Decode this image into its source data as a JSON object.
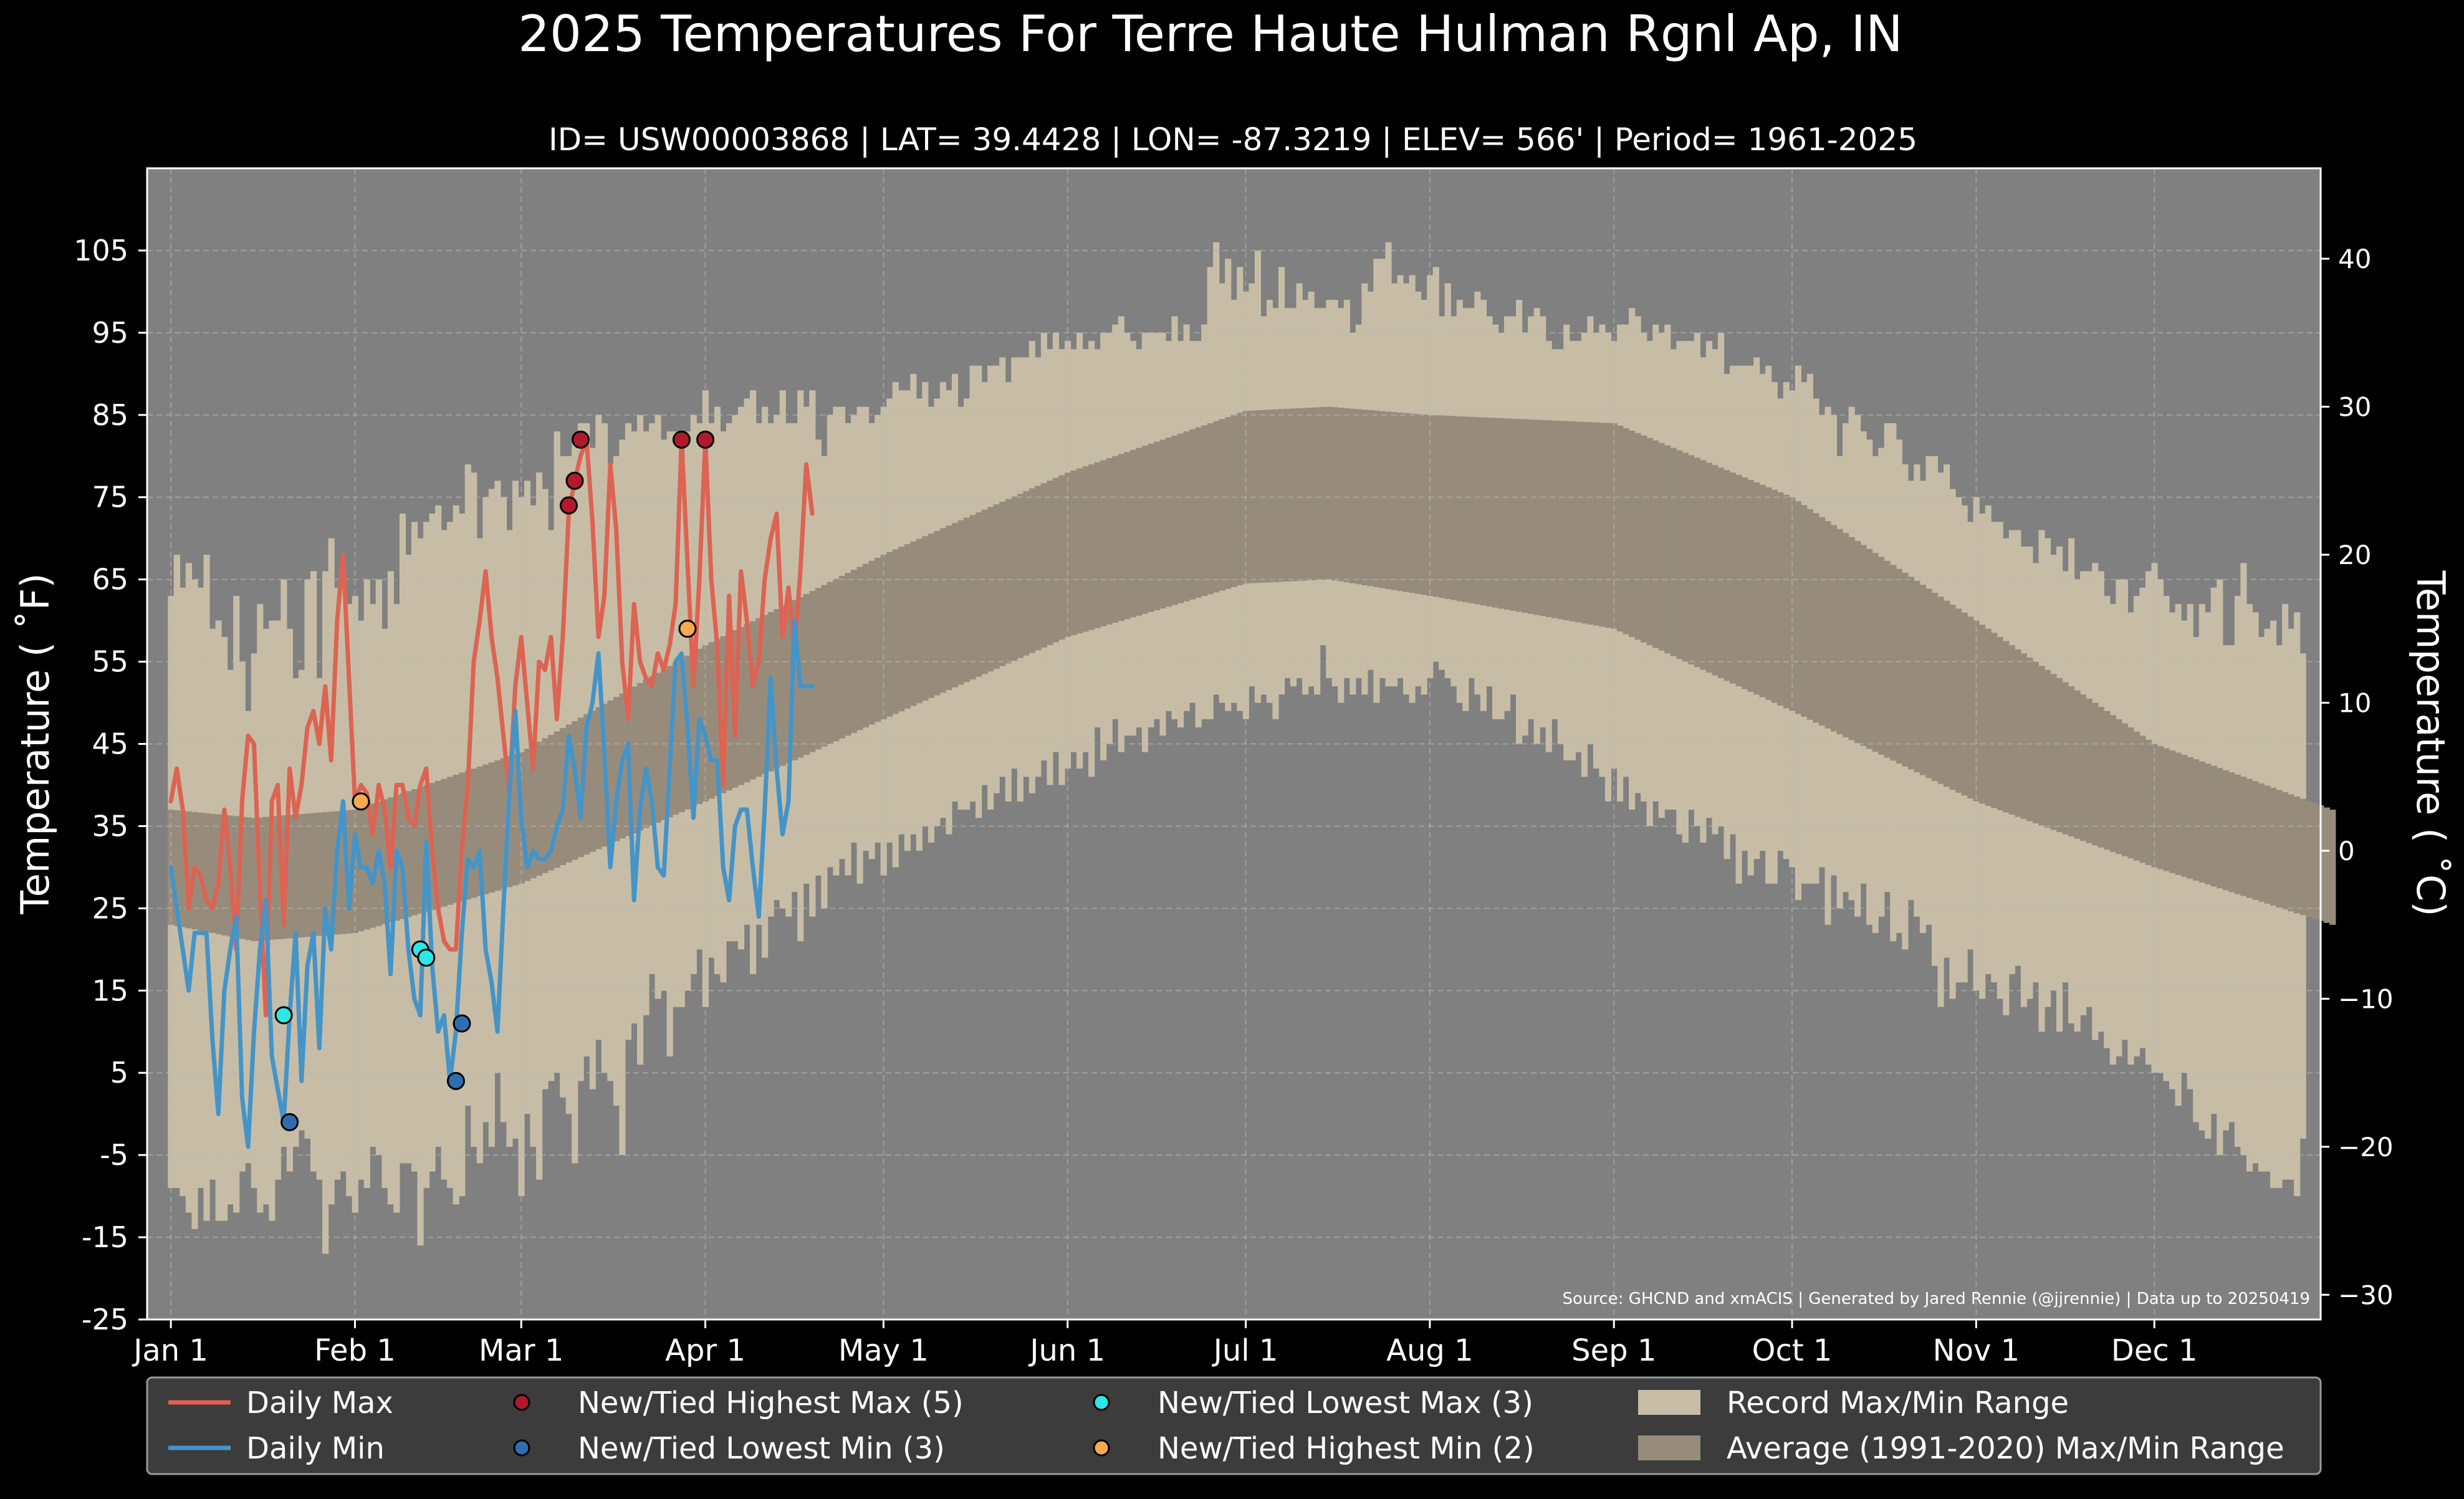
{
  "chart_data": {
    "type": "line",
    "title": "2025 Temperatures For Terre Haute Hulman Rgnl Ap, IN",
    "subtitle": "ID= USW00003868 | LAT= 39.4428 | LON= -87.3219 | ELEV= 566' | Period= 1961-2025",
    "ylabel": "Temperature ( ˚F)",
    "y2label": "Temperature ( ˚C)",
    "source": "Source: GHCND and xmACIS | Generated by Jared Rennie (@jjrennie) | Data up to 20250419",
    "ylim": [
      -25,
      115
    ],
    "y2lim": [
      -31.67,
      46.11
    ],
    "xlim": [
      -3,
      363
    ],
    "yticks": [
      105,
      95,
      85,
      75,
      65,
      55,
      45,
      35,
      25,
      15,
      5,
      -5,
      -15,
      -25
    ],
    "y2ticks": [
      40,
      30,
      20,
      10,
      0,
      -10,
      -20,
      -30
    ],
    "xticks": [
      {
        "label": "Jan 1",
        "day": 1
      },
      {
        "label": "Feb 1",
        "day": 32
      },
      {
        "label": "Mar 1",
        "day": 60
      },
      {
        "label": "Apr 1",
        "day": 91
      },
      {
        "label": "May 1",
        "day": 121
      },
      {
        "label": "Jun 1",
        "day": 152
      },
      {
        "label": "Jul 1",
        "day": 182
      },
      {
        "label": "Aug 1",
        "day": 213
      },
      {
        "label": "Sep 1",
        "day": 244
      },
      {
        "label": "Oct 1",
        "day": 274
      },
      {
        "label": "Nov 1",
        "day": 305
      },
      {
        "label": "Dec 1",
        "day": 335
      }
    ],
    "grid": true,
    "legend_position": "bottom",
    "colors": {
      "background": "#000000",
      "plot_bg": "#808080",
      "record_band": "#c7bda6",
      "normal_band": "#978c7c",
      "daily_max": "#dd6352",
      "daily_min": "#4494c8",
      "grid": "#b8b8b8",
      "text": "#ffffff"
    },
    "series": [
      {
        "name": "Daily Max",
        "color": "#dd6352",
        "x": [
          1,
          2,
          3,
          4,
          5,
          6,
          7,
          8,
          9,
          10,
          11,
          12,
          13,
          14,
          15,
          16,
          17,
          18,
          19,
          20,
          21,
          22,
          23,
          24,
          25,
          26,
          27,
          28,
          29,
          30,
          31,
          32,
          33,
          34,
          35,
          36,
          37,
          38,
          39,
          40,
          41,
          42,
          43,
          44,
          45,
          46,
          47,
          48,
          49,
          50,
          51,
          52,
          53,
          54,
          55,
          56,
          57,
          58,
          59,
          60,
          61,
          62,
          63,
          64,
          65,
          66,
          67,
          68,
          69,
          70,
          71,
          72,
          73,
          74,
          75,
          76,
          77,
          78,
          79,
          80,
          81,
          82,
          83,
          84,
          85,
          86,
          87,
          88,
          89,
          90,
          91,
          92,
          93,
          94,
          95,
          96,
          97,
          98,
          99,
          100,
          101,
          102,
          103,
          104,
          105,
          106,
          107,
          108,
          109
        ],
        "values": [
          38,
          42,
          37,
          25,
          30,
          29,
          26,
          25,
          28,
          37,
          30,
          20,
          38,
          46,
          45,
          27,
          12,
          38,
          40,
          23,
          42,
          36,
          40,
          47,
          49,
          45,
          52,
          43,
          60,
          68,
          53,
          38,
          40,
          39,
          34,
          40,
          37,
          30,
          40,
          40,
          36,
          35,
          40,
          42,
          32,
          25,
          21,
          20,
          20,
          32,
          40,
          55,
          60,
          66,
          58,
          53,
          46,
          39,
          52,
          58,
          50,
          42,
          55,
          54,
          58,
          48,
          58,
          73,
          77,
          80,
          82,
          72,
          58,
          63,
          79,
          71,
          55,
          48,
          62,
          55,
          53,
          52,
          56,
          54,
          57,
          62,
          82,
          67,
          52,
          65,
          82,
          65,
          57,
          40,
          63,
          46,
          66,
          60,
          52,
          55,
          65,
          70,
          73,
          58,
          64,
          56,
          66,
          79,
          73
        ]
      },
      {
        "name": "Daily Min",
        "color": "#4494c8",
        "x": [
          1,
          2,
          3,
          4,
          5,
          6,
          7,
          8,
          9,
          10,
          11,
          12,
          13,
          14,
          15,
          16,
          17,
          18,
          19,
          20,
          21,
          22,
          23,
          24,
          25,
          26,
          27,
          28,
          29,
          30,
          31,
          32,
          33,
          34,
          35,
          36,
          37,
          38,
          39,
          40,
          41,
          42,
          43,
          44,
          45,
          46,
          47,
          48,
          49,
          50,
          51,
          52,
          53,
          54,
          55,
          56,
          57,
          58,
          59,
          60,
          61,
          62,
          63,
          64,
          65,
          66,
          67,
          68,
          69,
          70,
          71,
          72,
          73,
          74,
          75,
          76,
          77,
          78,
          79,
          80,
          81,
          82,
          83,
          84,
          85,
          86,
          87,
          88,
          89,
          90,
          91,
          92,
          93,
          94,
          95,
          96,
          97,
          98,
          99,
          100,
          101,
          102,
          103,
          104,
          105,
          106,
          107,
          108,
          109
        ],
        "values": [
          30,
          25,
          20,
          15,
          22,
          22,
          22,
          9,
          0,
          15,
          20,
          24,
          2,
          -4,
          10,
          20,
          26,
          7,
          3,
          -1,
          12,
          22,
          4,
          18,
          22,
          8,
          25,
          20,
          32,
          38,
          25,
          34,
          30,
          30,
          28,
          32,
          28,
          17,
          32,
          30,
          20,
          14,
          12,
          33,
          18,
          10,
          12,
          4,
          10,
          22,
          31,
          30,
          32,
          20,
          16,
          10,
          25,
          39,
          49,
          36,
          30,
          32,
          31,
          31,
          32,
          35,
          37,
          46,
          42,
          36,
          47,
          50,
          56,
          44,
          30,
          38,
          43,
          45,
          26,
          37,
          42,
          38,
          30,
          29,
          42,
          55,
          56,
          47,
          36,
          48,
          46,
          43,
          43,
          30,
          26,
          35,
          37,
          37,
          30,
          24,
          37,
          53,
          42,
          34,
          38,
          60,
          52,
          52,
          52
        ]
      }
    ],
    "record_max": [
      63,
      68,
      64,
      67,
      65,
      64,
      68,
      59,
      60,
      58,
      54,
      63,
      55,
      49,
      56,
      62,
      59,
      60,
      60,
      65,
      59,
      53,
      54,
      65,
      66,
      53,
      66,
      70,
      64,
      64,
      62,
      63,
      60,
      65,
      62,
      65,
      59,
      66,
      62,
      73,
      68,
      72,
      70,
      72,
      73,
      74,
      71,
      72,
      74,
      73,
      79,
      78,
      70,
      75,
      76,
      77,
      75,
      71,
      77,
      75,
      77,
      74,
      78,
      76,
      71,
      83,
      80,
      80,
      82,
      84,
      84,
      81,
      85,
      84,
      79,
      80,
      82,
      84,
      83,
      85,
      83,
      84,
      85,
      82,
      83,
      83,
      79,
      83,
      85,
      84,
      88,
      84,
      86,
      83,
      84,
      85,
      86,
      87,
      88,
      84,
      86,
      84,
      85,
      88,
      84,
      84,
      88,
      86,
      88,
      82,
      80,
      85,
      86,
      86,
      84,
      85,
      86,
      86,
      84,
      85,
      86,
      87,
      89,
      88,
      88,
      90,
      87,
      89,
      86,
      87,
      89,
      88,
      90,
      86,
      87,
      91,
      91,
      89,
      91,
      91,
      92,
      89,
      92,
      92,
      92,
      94,
      92,
      95,
      93,
      95,
      93,
      94,
      93,
      95,
      93,
      94,
      93,
      95,
      95,
      96,
      97,
      95,
      94,
      93,
      95,
      95,
      95,
      95,
      94,
      97,
      94,
      96,
      94,
      94,
      96,
      103,
      106,
      101,
      104,
      99,
      103,
      100,
      101,
      105,
      97,
      99,
      98,
      103,
      98,
      98,
      101,
      99,
      100,
      98,
      98,
      99,
      99,
      98,
      99,
      95,
      96,
      101,
      100,
      104,
      104,
      106,
      101,
      102,
      101,
      102,
      100,
      99,
      102,
      103,
      97,
      101,
      97,
      99,
      98,
      98,
      100,
      99,
      97,
      96,
      95,
      97,
      97,
      99,
      95,
      97,
      98,
      97,
      94,
      93,
      93,
      96,
      94,
      94,
      95,
      97,
      95,
      96,
      95,
      94,
      96,
      96,
      98,
      97,
      95,
      94,
      96,
      95,
      96,
      93,
      94,
      94,
      94,
      95,
      92,
      94,
      93,
      95,
      90,
      91,
      91,
      91,
      91,
      92,
      90,
      91,
      89,
      87,
      89,
      88,
      91,
      89,
      90,
      87,
      85,
      86,
      85,
      80,
      84,
      86,
      85,
      83,
      82,
      80,
      81,
      84,
      84,
      82,
      79,
      77,
      79,
      77,
      80,
      80,
      78,
      79,
      76,
      75,
      74,
      72,
      75,
      73,
      74,
      72,
      72,
      70,
      71,
      71,
      69,
      69,
      67,
      71,
      70,
      68,
      69,
      66,
      70,
      65,
      66,
      66,
      67,
      66,
      63,
      62,
      65,
      65,
      61,
      63,
      64,
      66,
      67,
      65,
      63,
      61,
      62,
      60,
      62,
      58,
      62,
      61,
      64,
      65,
      57,
      57,
      63,
      67,
      62,
      61,
      58,
      59,
      60,
      57,
      62,
      59,
      61,
      56
    ],
    "record_min": [
      -9,
      -9,
      -10,
      -12,
      -14,
      -9,
      -13,
      -8,
      -13,
      -13,
      -11,
      -12,
      -7,
      -6,
      -9,
      -12,
      -11,
      -13,
      -8,
      -4,
      -7,
      -4,
      -2,
      -3,
      -7,
      -8,
      -17,
      -11,
      -8,
      -7,
      -10,
      -12,
      -8,
      -9,
      -4,
      -5,
      -9,
      -11,
      -12,
      -6,
      -6,
      -7,
      -16,
      -9,
      -7,
      -4,
      -8,
      -9,
      -11,
      -10,
      1,
      -4,
      -6,
      -1,
      -4,
      5,
      -1,
      -4,
      -3,
      -10,
      0,
      -4,
      -8,
      3,
      4,
      5,
      2,
      0,
      -6,
      4,
      7,
      3,
      9,
      5,
      4,
      1,
      -5,
      9,
      11,
      6,
      12,
      17,
      14,
      15,
      7,
      13,
      13,
      15,
      17,
      20,
      13,
      19,
      17,
      16,
      21,
      21,
      20,
      23,
      17,
      23,
      19,
      24,
      26,
      25,
      24,
      27,
      21,
      28,
      24,
      29,
      25,
      30,
      29,
      31,
      29,
      33,
      28,
      32,
      31,
      33,
      29,
      33,
      30,
      34,
      32,
      34,
      32,
      35,
      33,
      35,
      36,
      34,
      38,
      37,
      37,
      38,
      36,
      40,
      37,
      39,
      41,
      38,
      42,
      38,
      41,
      39,
      41,
      43,
      40,
      44,
      40,
      42,
      44,
      42,
      44,
      41,
      47,
      43,
      45,
      48,
      44,
      46,
      46,
      47,
      44,
      47,
      48,
      46,
      49,
      48,
      47,
      49,
      50,
      47,
      48,
      48,
      51,
      50,
      49,
      50,
      49,
      48,
      52,
      50,
      51,
      50,
      48,
      51,
      53,
      52,
      53,
      51,
      52,
      51,
      57,
      53,
      52,
      50,
      53,
      51,
      53,
      51,
      54,
      50,
      53,
      52,
      52,
      53,
      51,
      50,
      52,
      51,
      53,
      55,
      54,
      53,
      52,
      50,
      49,
      53,
      51,
      49,
      52,
      48,
      48,
      49,
      51,
      45,
      46,
      48,
      45,
      47,
      44,
      48,
      45,
      43,
      43,
      44,
      41,
      45,
      42,
      41,
      38,
      42,
      38,
      41,
      37,
      39,
      38,
      35,
      38,
      36,
      37,
      37,
      34,
      33,
      37,
      35,
      33,
      36,
      34,
      35,
      31,
      34,
      28,
      32,
      29,
      31,
      32,
      28,
      28,
      32,
      31,
      30,
      26,
      28,
      28,
      28,
      30,
      23,
      29,
      25,
      27,
      26,
      24,
      28,
      23,
      22,
      24,
      27,
      21,
      22,
      20,
      26,
      24,
      22,
      23,
      18,
      13,
      19,
      14,
      16,
      16,
      20,
      15,
      14,
      17,
      16,
      14,
      12,
      17,
      18,
      13,
      14,
      16,
      10,
      13,
      15,
      10,
      16,
      11,
      10,
      12,
      13,
      9,
      10,
      8,
      6,
      7,
      9,
      6,
      7,
      8,
      6,
      5,
      5,
      4,
      3,
      1,
      5,
      3,
      -1,
      -2,
      -3,
      0,
      -5,
      -2,
      -1,
      -4,
      -5,
      -7,
      -6,
      -7,
      -7,
      -9,
      -9,
      -8,
      -8,
      -10,
      -3,
      -5,
      -9,
      -11,
      -4,
      -7,
      -8,
      -10,
      -9,
      -8
    ],
    "normal_max": {
      "days": [
        1,
        15,
        32,
        60,
        91,
        121,
        152,
        182,
        196,
        213,
        244,
        274,
        305,
        335,
        365
      ],
      "values": [
        37,
        36,
        37,
        44,
        57,
        68,
        78,
        85.5,
        86,
        85,
        84,
        75,
        60,
        45,
        37
      ]
    },
    "normal_min": {
      "days": [
        1,
        15,
        32,
        60,
        91,
        121,
        152,
        182,
        196,
        213,
        244,
        274,
        305,
        335,
        365
      ],
      "values": [
        23,
        21,
        22,
        28,
        38,
        48,
        58,
        64.5,
        65,
        63,
        59,
        49,
        38,
        30,
        23
      ]
    },
    "records": [
      {
        "name": "New/Tied Highest Max (5)",
        "color": "#b01a2c",
        "points": [
          [
            70,
            82
          ],
          [
            69,
            77
          ],
          [
            68,
            74
          ],
          [
            87,
            82
          ],
          [
            91,
            82
          ]
        ]
      },
      {
        "name": "New/Tied Lowest Min (3)",
        "color": "#2e6db0",
        "points": [
          [
            21,
            -1
          ],
          [
            49,
            4
          ],
          [
            50,
            11
          ]
        ]
      },
      {
        "name": "New/Tied Lowest Max (3)",
        "color": "#2ee6e6",
        "points": [
          [
            20,
            12
          ],
          [
            43,
            20
          ],
          [
            44,
            19
          ]
        ]
      },
      {
        "name": "New/Tied Highest Min (2)",
        "color": "#f6a94f",
        "points": [
          [
            33,
            38
          ],
          [
            88,
            59
          ]
        ]
      }
    ],
    "legend": [
      {
        "label": "Daily Max",
        "kind": "line",
        "color": "#dd6352"
      },
      {
        "label": "Daily Min",
        "kind": "line",
        "color": "#4494c8"
      },
      {
        "label": "New/Tied Highest Max (5)",
        "kind": "dot",
        "color": "#b01a2c"
      },
      {
        "label": "New/Tied Lowest Min (3)",
        "kind": "dot",
        "color": "#2e6db0"
      },
      {
        "label": "New/Tied Lowest Max (3)",
        "kind": "dot",
        "color": "#2ee6e6"
      },
      {
        "label": "New/Tied Highest Min (2)",
        "kind": "dot",
        "color": "#f6a94f"
      },
      {
        "label": "Record Max/Min Range",
        "kind": "patch",
        "color": "#c7bda6"
      },
      {
        "label": "Average (1991-2020) Max/Min Range",
        "kind": "patch",
        "color": "#978c7c"
      }
    ]
  }
}
